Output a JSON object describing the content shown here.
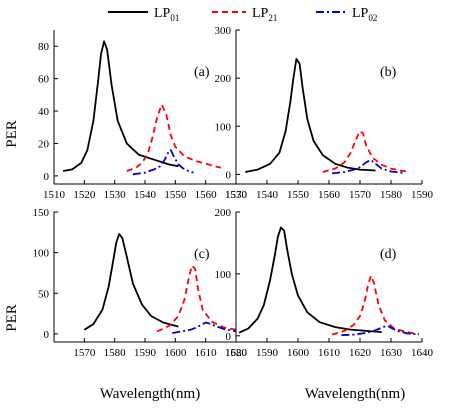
{
  "legend": [
    {
      "base": "LP",
      "sub": "01",
      "color": "#000000",
      "dash": ""
    },
    {
      "base": "LP",
      "sub": "21",
      "color": "#ff0000",
      "dash": "6,4"
    },
    {
      "base": "LP",
      "sub": "02",
      "color": "#0000cc",
      "dash": "8,3,2,3"
    }
  ],
  "ylabel": "PER",
  "xlabel": "Wavelength(nm)",
  "chart_data": [
    {
      "type": "line",
      "panel": "(a)",
      "xlim": [
        1510,
        1570
      ],
      "ylim": [
        -5,
        90
      ],
      "xticks": [
        1510,
        1520,
        1530,
        1540,
        1550,
        1560,
        1570
      ],
      "yticks": [
        0,
        20,
        40,
        60,
        80
      ],
      "series": [
        {
          "key": "LP01",
          "x": [
            1513,
            1516,
            1519,
            1521,
            1523,
            1524.5,
            1525.5,
            1526.5,
            1527.5,
            1529,
            1531,
            1534,
            1538,
            1543,
            1548,
            1551
          ],
          "y": [
            3,
            4,
            8,
            16,
            34,
            58,
            75,
            83,
            78,
            56,
            34,
            20,
            13,
            10,
            7,
            6
          ]
        },
        {
          "key": "LP21",
          "x": [
            1534,
            1537,
            1539,
            1541,
            1542.5,
            1544,
            1545.5,
            1547,
            1548.5,
            1550,
            1553,
            1557,
            1561,
            1565
          ],
          "y": [
            3,
            5,
            8,
            14,
            24,
            36,
            44,
            38,
            25,
            18,
            12,
            9,
            7,
            5
          ]
        },
        {
          "key": "LP02",
          "x": [
            1536,
            1540,
            1543,
            1545,
            1546.5,
            1547.5,
            1548.5,
            1549.5,
            1551,
            1553,
            1556
          ],
          "y": [
            1,
            2,
            4,
            6,
            10,
            14,
            16,
            12,
            7,
            4,
            2
          ]
        }
      ]
    },
    {
      "type": "line",
      "panel": "(b)",
      "xlim": [
        1530,
        1590
      ],
      "ylim": [
        -20,
        300
      ],
      "xticks": [
        1530,
        1540,
        1550,
        1560,
        1570,
        1580,
        1590
      ],
      "yticks": [
        0,
        100,
        200,
        300
      ],
      "series": [
        {
          "key": "LP01",
          "x": [
            1533,
            1537,
            1541,
            1544,
            1546,
            1547.5,
            1548.5,
            1549.5,
            1550.5,
            1551.5,
            1553,
            1555,
            1558,
            1562,
            1566,
            1570,
            1575
          ],
          "y": [
            5,
            10,
            22,
            45,
            90,
            150,
            200,
            240,
            230,
            180,
            115,
            70,
            40,
            22,
            14,
            10,
            8
          ]
        },
        {
          "key": "LP21",
          "x": [
            1558,
            1562,
            1565,
            1567,
            1568.5,
            1570,
            1571,
            1572,
            1574,
            1577,
            1580,
            1583,
            1586
          ],
          "y": [
            5,
            12,
            25,
            45,
            70,
            90,
            85,
            60,
            35,
            20,
            12,
            8,
            5
          ]
        },
        {
          "key": "LP02",
          "x": [
            1561,
            1565,
            1568,
            1570,
            1572,
            1573.5,
            1575,
            1577,
            1580,
            1584
          ],
          "y": [
            2,
            5,
            10,
            15,
            25,
            30,
            22,
            12,
            6,
            3
          ]
        }
      ]
    },
    {
      "type": "line",
      "panel": "(c)",
      "xlim": [
        1560,
        1620
      ],
      "ylim": [
        -10,
        150
      ],
      "xticks": [
        1570,
        1580,
        1590,
        1600,
        1610,
        1620
      ],
      "yticks": [
        0,
        50,
        100,
        150
      ],
      "series": [
        {
          "key": "LP01",
          "x": [
            1570,
            1573,
            1576,
            1578,
            1579.5,
            1580.5,
            1581.5,
            1582.5,
            1584,
            1586,
            1589,
            1592,
            1596,
            1601
          ],
          "y": [
            5,
            12,
            30,
            58,
            90,
            112,
            123,
            118,
            95,
            62,
            36,
            22,
            14,
            9
          ]
        },
        {
          "key": "LP21",
          "x": [
            1594,
            1598,
            1601,
            1603,
            1604.5,
            1605.5,
            1606.5,
            1607.5,
            1609,
            1612,
            1616,
            1620
          ],
          "y": [
            3,
            10,
            22,
            42,
            70,
            84,
            80,
            55,
            30,
            15,
            8,
            5
          ]
        },
        {
          "key": "LP02",
          "x": [
            1599,
            1602,
            1605,
            1607,
            1609,
            1610,
            1611,
            1613,
            1616,
            1620
          ],
          "y": [
            1,
            3,
            5,
            8,
            12,
            14,
            13,
            10,
            6,
            3
          ]
        }
      ]
    },
    {
      "type": "line",
      "panel": "(d)",
      "xlim": [
        1580,
        1640
      ],
      "ylim": [
        -10,
        200
      ],
      "xticks": [
        1580,
        1590,
        1600,
        1610,
        1620,
        1630,
        1640
      ],
      "yticks": [
        0,
        100,
        200
      ],
      "series": [
        {
          "key": "LP01",
          "x": [
            1581,
            1584,
            1587,
            1589,
            1591,
            1592.5,
            1593.5,
            1594.5,
            1595.5,
            1596.5,
            1598,
            1600,
            1603,
            1607,
            1612,
            1617,
            1622,
            1627
          ],
          "y": [
            5,
            12,
            28,
            50,
            90,
            130,
            160,
            175,
            170,
            140,
            100,
            65,
            38,
            22,
            14,
            10,
            8,
            6
          ]
        },
        {
          "key": "LP21",
          "x": [
            1611,
            1615,
            1618,
            1620,
            1621.5,
            1622.5,
            1623.5,
            1624.5,
            1626,
            1628,
            1631,
            1635,
            1639
          ],
          "y": [
            2,
            8,
            18,
            32,
            55,
            80,
            97,
            85,
            50,
            25,
            12,
            6,
            3
          ]
        },
        {
          "key": "LP02",
          "x": [
            1614,
            1618,
            1621,
            1624,
            1626,
            1628,
            1629,
            1630,
            1632,
            1635,
            1639
          ],
          "y": [
            1,
            2,
            4,
            7,
            11,
            15,
            16,
            13,
            8,
            4,
            2
          ]
        }
      ]
    }
  ]
}
